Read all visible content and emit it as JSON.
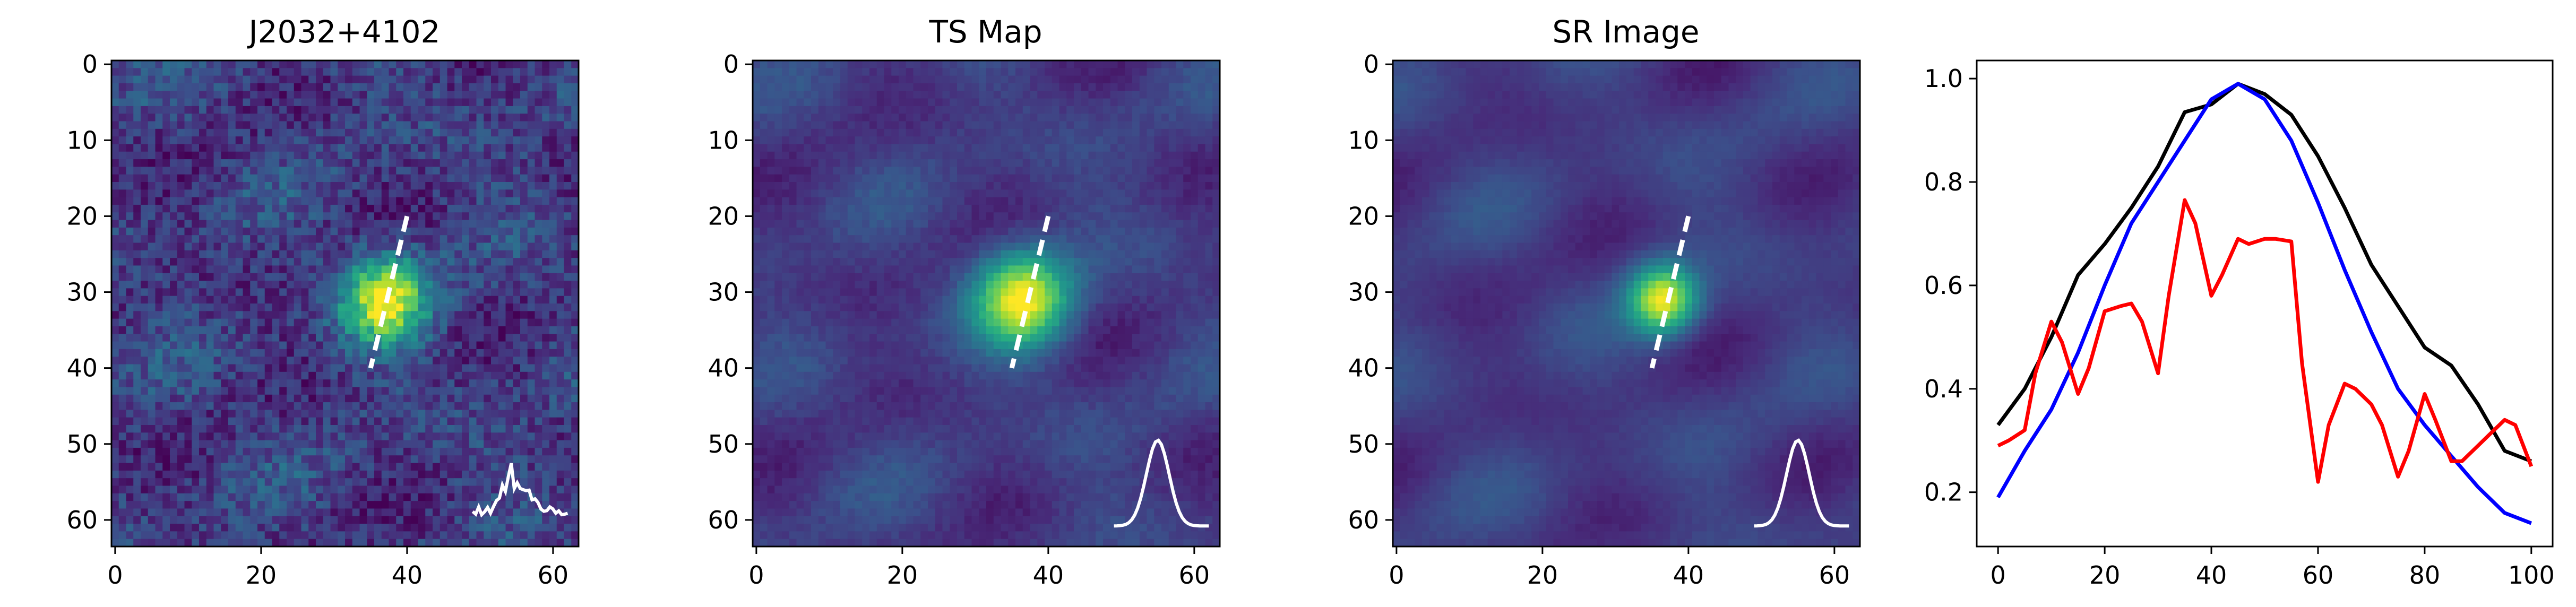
{
  "chart_data": [
    {
      "type": "heatmap",
      "title": "J2032+4102",
      "colormap": "viridis",
      "x_ticks": [
        0,
        20,
        40,
        60
      ],
      "y_ticks": [
        0,
        10,
        20,
        30,
        40,
        50,
        60
      ],
      "xlim": [
        -0.5,
        63.5
      ],
      "ylim": [
        63.5,
        -0.5
      ],
      "source_center": [
        37,
        31
      ],
      "source_sigma": 4,
      "noise": 0.45,
      "cut_line": [
        [
          40,
          20
        ],
        [
          35,
          40
        ]
      ],
      "inset_profile": "noisy"
    },
    {
      "type": "heatmap",
      "title": "TS Map",
      "colormap": "viridis",
      "x_ticks": [
        0,
        20,
        40,
        60
      ],
      "y_ticks": [
        0,
        10,
        20,
        30,
        40,
        50,
        60
      ],
      "xlim": [
        -0.5,
        63.5
      ],
      "ylim": [
        63.5,
        -0.5
      ],
      "source_center": [
        36.5,
        31
      ],
      "source_sigma": 4.5,
      "noise": 0.12,
      "cut_line": [
        [
          40,
          20
        ],
        [
          35,
          40
        ]
      ],
      "inset_profile": "smooth"
    },
    {
      "type": "heatmap",
      "title": "SR Image",
      "colormap": "viridis",
      "x_ticks": [
        0,
        20,
        40,
        60
      ],
      "y_ticks": [
        0,
        10,
        20,
        30,
        40,
        50,
        60
      ],
      "xlim": [
        -0.5,
        63.5
      ],
      "ylim": [
        63.5,
        -0.5
      ],
      "source_center": [
        36.5,
        31
      ],
      "source_sigma": 3.2,
      "noise": 0.06,
      "cut_line": [
        [
          40,
          20
        ],
        [
          35,
          40
        ]
      ],
      "inset_profile": "smooth"
    },
    {
      "type": "line",
      "title": "",
      "xlabel": "",
      "ylabel": "",
      "xlim": [
        -4,
        104
      ],
      "ylim": [
        0.095,
        1.035
      ],
      "x_ticks": [
        0,
        20,
        40,
        60,
        80,
        100
      ],
      "y_ticks": [
        0.2,
        0.4,
        0.6,
        0.8,
        1.0
      ],
      "y_tick_labels": [
        "0.2",
        "0.4",
        "0.6",
        "0.8",
        "1.0"
      ],
      "grid": false,
      "series": [
        {
          "color": "#000000",
          "x": [
            0,
            5,
            10,
            15,
            20,
            25,
            30,
            35,
            40,
            45,
            50,
            55,
            60,
            65,
            70,
            75,
            80,
            85,
            90,
            95,
            100
          ],
          "y": [
            0.33,
            0.4,
            0.5,
            0.62,
            0.68,
            0.75,
            0.83,
            0.935,
            0.95,
            0.99,
            0.97,
            0.93,
            0.85,
            0.75,
            0.64,
            0.56,
            0.48,
            0.445,
            0.37,
            0.28,
            0.26
          ]
        },
        {
          "color": "#0000ff",
          "x": [
            0,
            5,
            10,
            15,
            20,
            25,
            30,
            35,
            40,
            45,
            50,
            55,
            60,
            65,
            70,
            75,
            80,
            85,
            90,
            95,
            100
          ],
          "y": [
            0.19,
            0.28,
            0.36,
            0.47,
            0.6,
            0.72,
            0.8,
            0.88,
            0.96,
            0.99,
            0.96,
            0.88,
            0.76,
            0.63,
            0.51,
            0.4,
            0.33,
            0.27,
            0.21,
            0.16,
            0.14
          ]
        },
        {
          "color": "#ff0000",
          "x": [
            0,
            2,
            5,
            7,
            10,
            12,
            15,
            17,
            20,
            23,
            25,
            27,
            30,
            32,
            35,
            37,
            40,
            42,
            45,
            47,
            50,
            52,
            55,
            57,
            60,
            62,
            65,
            67,
            70,
            72,
            75,
            77,
            80,
            82,
            85,
            87,
            90,
            92,
            95,
            97,
            100
          ],
          "y": [
            0.29,
            0.3,
            0.32,
            0.43,
            0.53,
            0.49,
            0.39,
            0.44,
            0.55,
            0.56,
            0.565,
            0.53,
            0.43,
            0.58,
            0.765,
            0.72,
            0.58,
            0.62,
            0.69,
            0.68,
            0.69,
            0.69,
            0.685,
            0.45,
            0.22,
            0.33,
            0.41,
            0.4,
            0.37,
            0.33,
            0.23,
            0.28,
            0.39,
            0.34,
            0.26,
            0.26,
            0.29,
            0.31,
            0.34,
            0.33,
            0.25
          ]
        }
      ]
    }
  ]
}
